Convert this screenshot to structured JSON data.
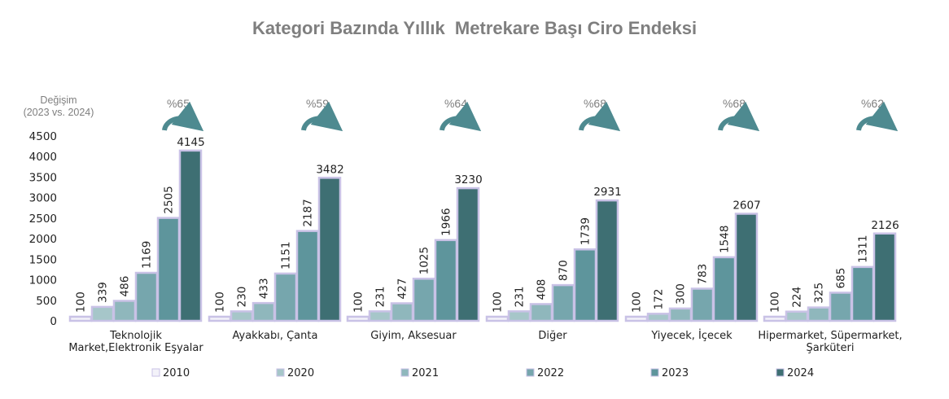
{
  "chart_data": {
    "type": "bar",
    "title": "Kategori Bazında Yıllık  Metrekare Başı Ciro Endeksi",
    "change_label": [
      "Değişim",
      "(2023 vs. 2024)"
    ],
    "categories": [
      "Teknolojik Market,Elektronik Eşyalar",
      "Ayakkabı, Çanta",
      "Giyim, Aksesuar",
      "Diğer",
      "Yiyecek, İçecek",
      "Hipermarket, Süpermarket, Şarküteri"
    ],
    "category_label_lines": [
      [
        "Teknolojik",
        "Market,Elektronik Eşyalar"
      ],
      [
        "Ayakkabı, Çanta"
      ],
      [
        "Giyim, Aksesuar"
      ],
      [
        "Diğer"
      ],
      [
        "Yiyecek, İçecek"
      ],
      [
        "Hipermarket, Süpermarket,",
        "Şarküteri"
      ]
    ],
    "series": [
      {
        "name": "2010",
        "values": [
          100,
          100,
          100,
          100,
          100,
          100
        ],
        "color": "#f3f2f9"
      },
      {
        "name": "2020",
        "values": [
          339,
          230,
          231,
          231,
          172,
          224
        ],
        "color": "#a6c6c9"
      },
      {
        "name": "2021",
        "values": [
          486,
          433,
          427,
          408,
          300,
          325
        ],
        "color": "#8fb7bc"
      },
      {
        "name": "2022",
        "values": [
          1169,
          1151,
          1025,
          870,
          783,
          685
        ],
        "color": "#76a6ad"
      },
      {
        "name": "2023",
        "values": [
          2505,
          2187,
          1966,
          1739,
          1548,
          1311
        ],
        "color": "#5e959c"
      },
      {
        "name": "2024",
        "values": [
          4145,
          3482,
          3230,
          2931,
          2607,
          2126
        ],
        "color": "#3e6f73"
      }
    ],
    "change_2023_vs_2024": [
      "%65",
      "%59",
      "%64",
      "%68",
      "%68",
      "%62"
    ],
    "ylim": [
      0,
      4500
    ],
    "yticks": [
      0,
      500,
      1000,
      1500,
      2000,
      2500,
      3000,
      3500,
      4000,
      4500
    ],
    "grid": false,
    "legend_position": "bottom",
    "arrow_color": "#4e8a90",
    "bar_border_color": "#c9c2e6",
    "label_color": "#7f7f7f"
  }
}
